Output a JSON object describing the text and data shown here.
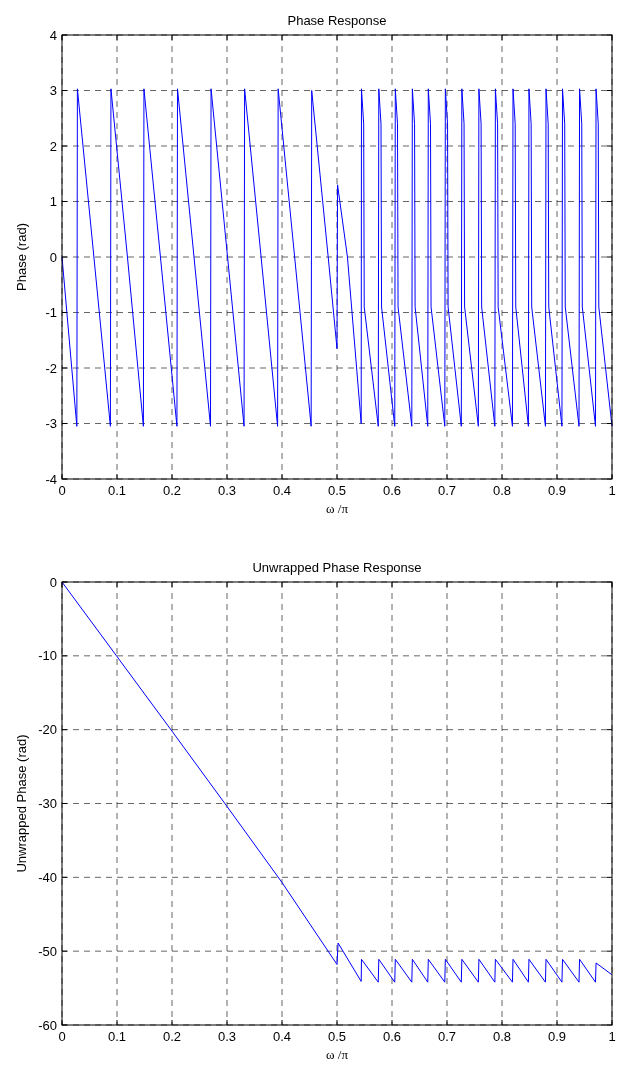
{
  "chart_data": [
    {
      "type": "line",
      "title": "Phase Response",
      "xlabel": "ω /π",
      "ylabel": "Phase (rad)",
      "xlim": [
        0,
        1
      ],
      "ylim": [
        -4,
        4
      ],
      "xticks": [
        0,
        0.1,
        0.2,
        0.3,
        0.4,
        0.5,
        0.6,
        0.7,
        0.8,
        0.9,
        1
      ],
      "yticks": [
        -4,
        -3,
        -2,
        -1,
        0,
        1,
        2,
        3,
        4
      ],
      "grid": true,
      "series": [
        {
          "color": "#0000ff",
          "x": [
            0,
            0.027,
            0.028,
            0.058,
            0.088,
            0.089,
            0.119,
            0.148,
            0.149,
            0.179,
            0.209,
            0.21,
            0.24,
            0.27,
            0.271,
            0.301,
            0.331,
            0.332,
            0.362,
            0.392,
            0.393,
            0.423,
            0.453,
            0.454,
            0.484,
            0.5,
            0.501,
            0.519,
            0.544,
            0.5445,
            0.5485,
            0.5495,
            0.575,
            0.576,
            0.58,
            0.581,
            0.605,
            0.606,
            0.61,
            0.611,
            0.636,
            0.637,
            0.641,
            0.642,
            0.665,
            0.666,
            0.67,
            0.671,
            0.696,
            0.697,
            0.701,
            0.702,
            0.726,
            0.727,
            0.731,
            0.732,
            0.757,
            0.758,
            0.762,
            0.763,
            0.787,
            0.788,
            0.792,
            0.793,
            0.819,
            0.82,
            0.824,
            0.825,
            0.848,
            0.849,
            0.853,
            0.854,
            0.879,
            0.88,
            0.884,
            0.885,
            0.909,
            0.91,
            0.914,
            0.915,
            0.94,
            0.941,
            0.945,
            0.946,
            0.97,
            0.971,
            0.975,
            0.976,
            1
          ],
          "values": [
            0,
            -3.05,
            3.03,
            0,
            -3.05,
            3.03,
            0,
            -3.05,
            3.03,
            0,
            -3.05,
            3.03,
            0,
            -3.05,
            3.03,
            0,
            -3.05,
            3.03,
            0,
            -3.05,
            3.03,
            0,
            -3.05,
            3,
            0,
            -1.65,
            1.3,
            0,
            -3,
            3.03,
            2.4,
            -0.9,
            -3.05,
            3.03,
            2.4,
            -0.9,
            -3.05,
            3.03,
            2.4,
            -0.9,
            -3.05,
            3.03,
            2.4,
            -0.9,
            -3.05,
            3.03,
            2.4,
            -0.9,
            -3.05,
            3.03,
            2.4,
            -0.9,
            -3.05,
            3.03,
            2.4,
            -0.9,
            -3.05,
            3.03,
            2.4,
            -0.9,
            -3.05,
            3.03,
            2.4,
            -0.9,
            -3.05,
            3.03,
            2.4,
            -0.9,
            -3.05,
            3.03,
            2.4,
            -0.9,
            -3.05,
            3.03,
            2.4,
            -0.9,
            -3.05,
            3.03,
            2.4,
            -0.9,
            -3.05,
            3.03,
            2.4,
            -0.9,
            -3.05,
            3.03,
            2.4,
            -0.9,
            -3.05
          ]
        }
      ]
    },
    {
      "type": "line",
      "title": "Unwrapped Phase Response",
      "xlabel": "ω /π",
      "ylabel": "Unwrapped Phase (rad)",
      "xlim": [
        0,
        1
      ],
      "ylim": [
        -60,
        0
      ],
      "xticks": [
        0,
        0.1,
        0.2,
        0.3,
        0.4,
        0.5,
        0.6,
        0.7,
        0.8,
        0.9,
        1
      ],
      "yticks": [
        -60,
        -50,
        -40,
        -30,
        -20,
        -10,
        0
      ],
      "grid": true,
      "series": [
        {
          "color": "#0000ff",
          "x": [
            0,
            0.1,
            0.2,
            0.3,
            0.4,
            0.5,
            0.502,
            0.544,
            0.5445,
            0.575,
            0.576,
            0.605,
            0.606,
            0.636,
            0.637,
            0.665,
            0.666,
            0.696,
            0.697,
            0.726,
            0.727,
            0.757,
            0.758,
            0.787,
            0.788,
            0.819,
            0.82,
            0.848,
            0.849,
            0.879,
            0.88,
            0.909,
            0.91,
            0.94,
            0.941,
            0.97,
            0.971,
            1
          ],
          "values": [
            0,
            -10.1,
            -20.2,
            -30.4,
            -40.7,
            -51.8,
            -48.9,
            -54.1,
            -51.1,
            -54.2,
            -51.1,
            -54.2,
            -51.1,
            -54.2,
            -51.1,
            -54.2,
            -51.1,
            -54.2,
            -51.1,
            -54.2,
            -51.1,
            -54.2,
            -51.1,
            -54.2,
            -51.1,
            -54.2,
            -51.1,
            -54.2,
            -51.1,
            -54.2,
            -51.1,
            -54.2,
            -51.1,
            -54.2,
            -51.1,
            -54.2,
            -51.6,
            -53.2
          ]
        }
      ]
    }
  ]
}
